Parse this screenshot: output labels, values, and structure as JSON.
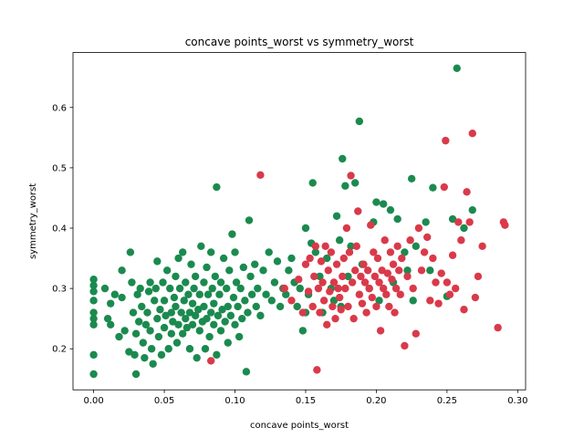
{
  "chart_data": {
    "type": "scatter",
    "title": "concave points_worst vs symmetry_worst",
    "xlabel": "concave points_worst",
    "ylabel": "symmetry_worst",
    "xlim": [
      -0.0146,
      0.3056
    ],
    "ylim": [
      0.132,
      0.691
    ],
    "xticks": [
      0.0,
      0.05,
      0.1,
      0.15,
      0.2,
      0.25,
      0.3
    ],
    "xtick_labels": [
      "0.00",
      "0.05",
      "0.10",
      "0.15",
      "0.20",
      "0.25",
      "0.30"
    ],
    "yticks": [
      0.2,
      0.3,
      0.4,
      0.5,
      0.6
    ],
    "ytick_labels": [
      "0.2",
      "0.3",
      "0.4",
      "0.5",
      "0.6"
    ],
    "grid": false,
    "legend": "none",
    "colors": {
      "benign": "#1b8a4f",
      "malignant": "#d93a4a"
    },
    "series": [
      {
        "color": "#1b8a4f",
        "points": [
          [
            0.0,
            0.315
          ],
          [
            0.0,
            0.305
          ],
          [
            0.0,
            0.295
          ],
          [
            0.0,
            0.28
          ],
          [
            0.0,
            0.26
          ],
          [
            0.0,
            0.25
          ],
          [
            0.0,
            0.24
          ],
          [
            0.0,
            0.19
          ],
          [
            0.0,
            0.158
          ],
          [
            0.008,
            0.3
          ],
          [
            0.01,
            0.25
          ],
          [
            0.012,
            0.24
          ],
          [
            0.012,
            0.275
          ],
          [
            0.015,
            0.29
          ],
          [
            0.018,
            0.22
          ],
          [
            0.02,
            0.285
          ],
          [
            0.02,
            0.33
          ],
          [
            0.022,
            0.23
          ],
          [
            0.025,
            0.195
          ],
          [
            0.026,
            0.36
          ],
          [
            0.027,
            0.31
          ],
          [
            0.028,
            0.26
          ],
          [
            0.029,
            0.19
          ],
          [
            0.03,
            0.158
          ],
          [
            0.03,
            0.225
          ],
          [
            0.031,
            0.29
          ],
          [
            0.032,
            0.245
          ],
          [
            0.033,
            0.3
          ],
          [
            0.034,
            0.27
          ],
          [
            0.035,
            0.21
          ],
          [
            0.036,
            0.185
          ],
          [
            0.037,
            0.24
          ],
          [
            0.038,
            0.26
          ],
          [
            0.039,
            0.295
          ],
          [
            0.04,
            0.31
          ],
          [
            0.04,
            0.23
          ],
          [
            0.041,
            0.2
          ],
          [
            0.042,
            0.175
          ],
          [
            0.043,
            0.28
          ],
          [
            0.044,
            0.3
          ],
          [
            0.045,
            0.25
          ],
          [
            0.045,
            0.345
          ],
          [
            0.046,
            0.22
          ],
          [
            0.047,
            0.265
          ],
          [
            0.048,
            0.19
          ],
          [
            0.049,
            0.31
          ],
          [
            0.05,
            0.235
          ],
          [
            0.05,
            0.28
          ],
          [
            0.051,
            0.255
          ],
          [
            0.052,
            0.33
          ],
          [
            0.053,
            0.2
          ],
          [
            0.054,
            0.3
          ],
          [
            0.055,
            0.225
          ],
          [
            0.055,
            0.26
          ],
          [
            0.056,
            0.245
          ],
          [
            0.057,
            0.285
          ],
          [
            0.058,
            0.32
          ],
          [
            0.058,
            0.27
          ],
          [
            0.059,
            0.21
          ],
          [
            0.06,
            0.35
          ],
          [
            0.06,
            0.24
          ],
          [
            0.061,
            0.3
          ],
          [
            0.062,
            0.26
          ],
          [
            0.063,
            0.36
          ],
          [
            0.063,
            0.225
          ],
          [
            0.064,
            0.28
          ],
          [
            0.065,
            0.25
          ],
          [
            0.065,
            0.31
          ],
          [
            0.066,
            0.235
          ],
          [
            0.067,
            0.29
          ],
          [
            0.068,
            0.26
          ],
          [
            0.068,
            0.2
          ],
          [
            0.069,
            0.34
          ],
          [
            0.07,
            0.275
          ],
          [
            0.07,
            0.24
          ],
          [
            0.071,
            0.3
          ],
          [
            0.072,
            0.255
          ],
          [
            0.072,
            0.32
          ],
          [
            0.073,
            0.185
          ],
          [
            0.074,
            0.265
          ],
          [
            0.075,
            0.23
          ],
          [
            0.075,
            0.29
          ],
          [
            0.076,
            0.37
          ],
          [
            0.077,
            0.245
          ],
          [
            0.078,
            0.31
          ],
          [
            0.078,
            0.27
          ],
          [
            0.079,
            0.2
          ],
          [
            0.08,
            0.335
          ],
          [
            0.08,
            0.25
          ],
          [
            0.081,
            0.29
          ],
          [
            0.082,
            0.22
          ],
          [
            0.083,
            0.26
          ],
          [
            0.083,
            0.36
          ],
          [
            0.084,
            0.3
          ],
          [
            0.085,
            0.24
          ],
          [
            0.085,
            0.275
          ],
          [
            0.086,
            0.32
          ],
          [
            0.087,
            0.468
          ],
          [
            0.087,
            0.19
          ],
          [
            0.088,
            0.255
          ],
          [
            0.089,
            0.29
          ],
          [
            0.09,
            0.23
          ],
          [
            0.09,
            0.31
          ],
          [
            0.091,
            0.265
          ],
          [
            0.092,
            0.35
          ],
          [
            0.093,
            0.245
          ],
          [
            0.094,
            0.3
          ],
          [
            0.095,
            0.27
          ],
          [
            0.095,
            0.21
          ],
          [
            0.096,
            0.33
          ],
          [
            0.097,
            0.255
          ],
          [
            0.098,
            0.39
          ],
          [
            0.099,
            0.285
          ],
          [
            0.1,
            0.36
          ],
          [
            0.1,
            0.24
          ],
          [
            0.101,
            0.31
          ],
          [
            0.102,
            0.27
          ],
          [
            0.103,
            0.22
          ],
          [
            0.104,
            0.3
          ],
          [
            0.105,
            0.25
          ],
          [
            0.106,
            0.335
          ],
          [
            0.107,
            0.28
          ],
          [
            0.108,
            0.162
          ],
          [
            0.109,
            0.26
          ],
          [
            0.11,
            0.413
          ],
          [
            0.111,
            0.32
          ],
          [
            0.112,
            0.29
          ],
          [
            0.114,
            0.34
          ],
          [
            0.115,
            0.27
          ],
          [
            0.116,
            0.3
          ],
          [
            0.118,
            0.255
          ],
          [
            0.12,
            0.33
          ],
          [
            0.122,
            0.29
          ],
          [
            0.124,
            0.36
          ],
          [
            0.126,
            0.28
          ],
          [
            0.128,
            0.31
          ],
          [
            0.13,
            0.345
          ],
          [
            0.132,
            0.27
          ],
          [
            0.134,
            0.3
          ],
          [
            0.136,
            0.29
          ],
          [
            0.138,
            0.33
          ],
          [
            0.14,
            0.35
          ],
          [
            0.142,
            0.31
          ],
          [
            0.144,
            0.27
          ],
          [
            0.146,
            0.3
          ],
          [
            0.148,
            0.23
          ],
          [
            0.15,
            0.26
          ],
          [
            0.15,
            0.4
          ],
          [
            0.152,
            0.29
          ],
          [
            0.154,
            0.375
          ],
          [
            0.155,
            0.475
          ],
          [
            0.157,
            0.36
          ],
          [
            0.16,
            0.32
          ],
          [
            0.162,
            0.26
          ],
          [
            0.165,
            0.35
          ],
          [
            0.168,
            0.3
          ],
          [
            0.17,
            0.28
          ],
          [
            0.172,
            0.42
          ],
          [
            0.174,
            0.38
          ],
          [
            0.175,
            0.27
          ],
          [
            0.176,
            0.515
          ],
          [
            0.178,
            0.47
          ],
          [
            0.18,
            0.32
          ],
          [
            0.182,
            0.37
          ],
          [
            0.185,
            0.475
          ],
          [
            0.188,
            0.577
          ],
          [
            0.19,
            0.34
          ],
          [
            0.195,
            0.3
          ],
          [
            0.198,
            0.41
          ],
          [
            0.2,
            0.443
          ],
          [
            0.202,
            0.28
          ],
          [
            0.205,
            0.44
          ],
          [
            0.21,
            0.43
          ],
          [
            0.212,
            0.31
          ],
          [
            0.215,
            0.415
          ],
          [
            0.22,
            0.36
          ],
          [
            0.222,
            0.33
          ],
          [
            0.225,
            0.482
          ],
          [
            0.226,
            0.28
          ],
          [
            0.228,
            0.37
          ],
          [
            0.235,
            0.41
          ],
          [
            0.238,
            0.33
          ],
          [
            0.24,
            0.467
          ],
          [
            0.25,
            0.287
          ],
          [
            0.254,
            0.415
          ],
          [
            0.257,
            0.665
          ],
          [
            0.262,
            0.4
          ],
          [
            0.268,
            0.43
          ]
        ]
      },
      {
        "color": "#d93a4a",
        "points": [
          [
            0.083,
            0.18
          ],
          [
            0.118,
            0.488
          ],
          [
            0.135,
            0.3
          ],
          [
            0.14,
            0.28
          ],
          [
            0.145,
            0.315
          ],
          [
            0.148,
            0.26
          ],
          [
            0.15,
            0.34
          ],
          [
            0.152,
            0.295
          ],
          [
            0.153,
            0.35
          ],
          [
            0.155,
            0.27
          ],
          [
            0.156,
            0.32
          ],
          [
            0.157,
            0.37
          ],
          [
            0.158,
            0.165
          ],
          [
            0.159,
            0.3
          ],
          [
            0.16,
            0.26
          ],
          [
            0.161,
            0.345
          ],
          [
            0.162,
            0.31
          ],
          [
            0.163,
            0.28
          ],
          [
            0.164,
            0.37
          ],
          [
            0.165,
            0.24
          ],
          [
            0.166,
            0.33
          ],
          [
            0.167,
            0.295
          ],
          [
            0.168,
            0.36
          ],
          [
            0.169,
            0.27
          ],
          [
            0.17,
            0.31
          ],
          [
            0.171,
            0.25
          ],
          [
            0.172,
            0.34
          ],
          [
            0.173,
            0.3
          ],
          [
            0.174,
            0.285
          ],
          [
            0.175,
            0.265
          ],
          [
            0.176,
            0.32
          ],
          [
            0.177,
            0.35
          ],
          [
            0.178,
            0.3
          ],
          [
            0.179,
            0.4
          ],
          [
            0.18,
            0.27
          ],
          [
            0.181,
            0.36
          ],
          [
            0.182,
            0.487
          ],
          [
            0.183,
            0.31
          ],
          [
            0.184,
            0.25
          ],
          [
            0.185,
            0.33
          ],
          [
            0.186,
            0.37
          ],
          [
            0.187,
            0.428
          ],
          [
            0.188,
            0.29
          ],
          [
            0.189,
            0.32
          ],
          [
            0.19,
            0.275
          ],
          [
            0.191,
            0.34
          ],
          [
            0.192,
            0.31
          ],
          [
            0.193,
            0.26
          ],
          [
            0.194,
            0.33
          ],
          [
            0.195,
            0.3
          ],
          [
            0.196,
            0.405
          ],
          [
            0.197,
            0.285
          ],
          [
            0.198,
            0.36
          ],
          [
            0.199,
            0.32
          ],
          [
            0.2,
            0.27
          ],
          [
            0.201,
            0.35
          ],
          [
            0.202,
            0.31
          ],
          [
            0.203,
            0.23
          ],
          [
            0.204,
            0.33
          ],
          [
            0.205,
            0.3
          ],
          [
            0.206,
            0.38
          ],
          [
            0.207,
            0.29
          ],
          [
            0.208,
            0.325
          ],
          [
            0.209,
            0.27
          ],
          [
            0.21,
            0.36
          ],
          [
            0.211,
            0.315
          ],
          [
            0.212,
            0.34
          ],
          [
            0.213,
            0.26
          ],
          [
            0.214,
            0.3
          ],
          [
            0.215,
            0.37
          ],
          [
            0.216,
            0.33
          ],
          [
            0.217,
            0.29
          ],
          [
            0.218,
            0.35
          ],
          [
            0.22,
            0.205
          ],
          [
            0.222,
            0.32
          ],
          [
            0.224,
            0.38
          ],
          [
            0.226,
            0.3
          ],
          [
            0.228,
            0.225
          ],
          [
            0.23,
            0.4
          ],
          [
            0.232,
            0.33
          ],
          [
            0.234,
            0.36
          ],
          [
            0.236,
            0.385
          ],
          [
            0.238,
            0.28
          ],
          [
            0.24,
            0.35
          ],
          [
            0.242,
            0.31
          ],
          [
            0.244,
            0.275
          ],
          [
            0.246,
            0.325
          ],
          [
            0.248,
            0.468
          ],
          [
            0.249,
            0.545
          ],
          [
            0.25,
            0.31
          ],
          [
            0.252,
            0.29
          ],
          [
            0.254,
            0.355
          ],
          [
            0.256,
            0.3
          ],
          [
            0.258,
            0.41
          ],
          [
            0.26,
            0.38
          ],
          [
            0.262,
            0.265
          ],
          [
            0.264,
            0.46
          ],
          [
            0.266,
            0.41
          ],
          [
            0.268,
            0.557
          ],
          [
            0.27,
            0.285
          ],
          [
            0.272,
            0.32
          ],
          [
            0.275,
            0.37
          ],
          [
            0.286,
            0.235
          ],
          [
            0.29,
            0.41
          ],
          [
            0.291,
            0.405
          ]
        ]
      }
    ]
  }
}
